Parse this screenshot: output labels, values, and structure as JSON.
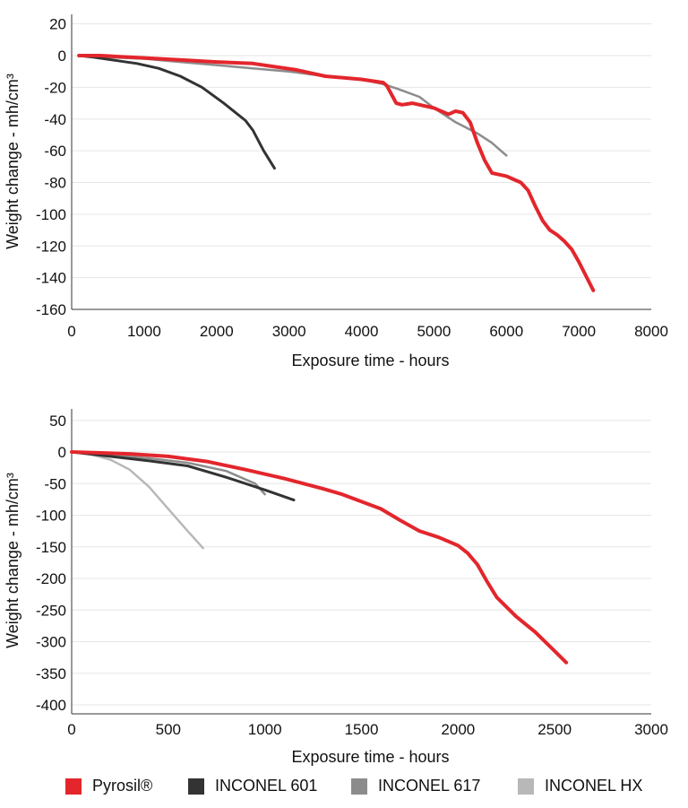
{
  "chart_data": [
    {
      "type": "line",
      "title": "",
      "xlabel": "Exposure time - hours",
      "ylabel": "Weight change - mh/cm³",
      "xlim": [
        0,
        8000
      ],
      "ylim": [
        -160,
        20
      ],
      "xticks": [
        0,
        1000,
        2000,
        3000,
        4000,
        5000,
        6000,
        7000,
        8000
      ],
      "yticks": [
        20,
        0,
        -20,
        -40,
        -60,
        -80,
        -100,
        -120,
        -140,
        -160
      ],
      "grid": "horizontal",
      "series": [
        {
          "name": "INCONEL 617",
          "color": "#8c8c8c",
          "x": [
            100,
            500,
            1000,
            1500,
            2000,
            2500,
            3000,
            3500,
            4000,
            4300,
            4500,
            4800,
            5000,
            5300,
            5600,
            5800,
            6000
          ],
          "y": [
            0,
            -1,
            -2,
            -4,
            -6,
            -8,
            -10,
            -13,
            -15,
            -18,
            -21,
            -26,
            -33,
            -42,
            -49,
            -55,
            -63
          ]
        },
        {
          "name": "INCONEL 601",
          "color": "#333333",
          "x": [
            100,
            300,
            600,
            900,
            1200,
            1500,
            1800,
            2100,
            2400,
            2500,
            2650,
            2800
          ],
          "y": [
            0,
            -1,
            -3,
            -5,
            -8,
            -13,
            -20,
            -30,
            -41,
            -47,
            -60,
            -71
          ]
        },
        {
          "name": "Pyrosil®",
          "color": "#e3262c",
          "x": [
            100,
            400,
            800,
            1200,
            1600,
            2000,
            2500,
            2800,
            3100,
            3500,
            4000,
            4300,
            4350,
            4420,
            4480,
            4560,
            4700,
            4800,
            5000,
            5100,
            5200,
            5300,
            5400,
            5500,
            5600,
            5700,
            5800,
            5900,
            6000,
            6100,
            6200,
            6300,
            6400,
            6500,
            6600,
            6700,
            6800,
            6900,
            7000,
            7100,
            7200
          ],
          "y": [
            0,
            0,
            -1,
            -2,
            -3,
            -4,
            -5,
            -7,
            -9,
            -13,
            -15,
            -17,
            -19,
            -25,
            -30,
            -31,
            -30,
            -31,
            -33,
            -35,
            -37,
            -35,
            -36,
            -42,
            -55,
            -66,
            -74,
            -75,
            -76,
            -78,
            -80,
            -85,
            -95,
            -104,
            -110,
            -113,
            -117,
            -122,
            -130,
            -139,
            -148
          ]
        }
      ]
    },
    {
      "type": "line",
      "title": "",
      "xlabel": "Exposure time - hours",
      "ylabel": "Weight change - mh/cm³",
      "xlim": [
        0,
        3000
      ],
      "ylim": [
        -400,
        50
      ],
      "xticks": [
        0,
        500,
        1000,
        1500,
        2000,
        2500,
        3000
      ],
      "yticks": [
        50,
        0,
        -50,
        -100,
        -150,
        -200,
        -250,
        -300,
        -350,
        -400
      ],
      "grid": "horizontal",
      "series": [
        {
          "name": "INCONEL HX",
          "color": "#b8b8b8",
          "x": [
            0,
            100,
            200,
            300,
            400,
            500,
            600,
            680
          ],
          "y": [
            0,
            -4,
            -12,
            -28,
            -55,
            -90,
            -125,
            -152
          ]
        },
        {
          "name": "INCONEL 617",
          "color": "#8c8c8c",
          "x": [
            0,
            200,
            400,
            600,
            800,
            950,
            1000
          ],
          "y": [
            0,
            -5,
            -10,
            -17,
            -30,
            -50,
            -67
          ]
        },
        {
          "name": "INCONEL 601",
          "color": "#333333",
          "x": [
            0,
            200,
            400,
            600,
            800,
            1000,
            1150
          ],
          "y": [
            0,
            -7,
            -14,
            -22,
            -40,
            -60,
            -76
          ]
        },
        {
          "name": "Pyrosil®",
          "color": "#e3262c",
          "x": [
            0,
            300,
            500,
            700,
            900,
            1100,
            1300,
            1400,
            1600,
            1700,
            1800,
            1900,
            2000,
            2050,
            2100,
            2150,
            2200,
            2300,
            2400,
            2500,
            2560
          ],
          "y": [
            0,
            -3,
            -7,
            -15,
            -28,
            -42,
            -58,
            -67,
            -90,
            -108,
            -125,
            -135,
            -148,
            -160,
            -178,
            -205,
            -230,
            -260,
            -285,
            -315,
            -333
          ]
        }
      ]
    }
  ],
  "legend": {
    "items": [
      {
        "label": "Pyrosil®",
        "color": "#e3262c"
      },
      {
        "label": "INCONEL 601",
        "color": "#333333"
      },
      {
        "label": "INCONEL 617",
        "color": "#8c8c8c"
      },
      {
        "label": "INCONEL HX",
        "color": "#b8b8b8"
      }
    ]
  }
}
